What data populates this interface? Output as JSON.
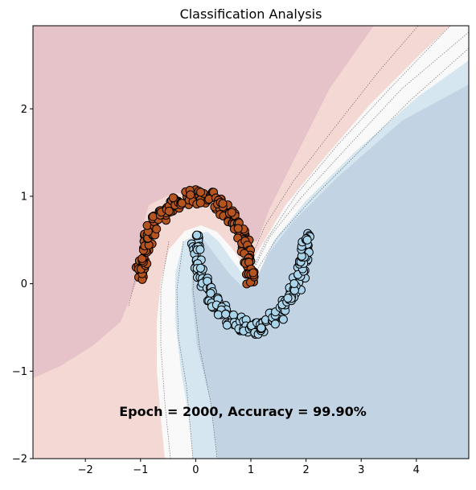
{
  "chart_data": {
    "type": "scatter",
    "title": "Classification Analysis",
    "xlabel": "",
    "ylabel": "",
    "xlim": [
      -2.95,
      4.95
    ],
    "ylim": [
      -2.0,
      2.95
    ],
    "xticks": [
      -2,
      -1,
      0,
      1,
      2,
      3,
      4
    ],
    "yticks": [
      -2,
      -1,
      0,
      1,
      2
    ],
    "grid": false,
    "legend": "none",
    "annotation": "Epoch = 2000, Accuracy = 99.90%",
    "background": "decision-boundary contour fill (red-blue diverging)",
    "colors": {
      "class_0_point": "#b5541e",
      "class_1_point": "#a9d4ea",
      "point_edge": "#000000",
      "region_red_deep": "#e6c3c9",
      "region_red_light": "#f4d8d3",
      "region_neutral": "#f9f9f9",
      "region_blue_light": "#d6e6f1",
      "region_blue_deep": "#c2d3e4"
    },
    "series": [
      {
        "class": 0,
        "shape": "upper moon (semicircle center (0,0), radius 1, angle 0 to 180 deg)",
        "points": [
          [
            -1.0,
            0.12
          ],
          [
            -0.98,
            0.2
          ],
          [
            -0.95,
            0.3
          ],
          [
            -0.92,
            0.4
          ],
          [
            -0.87,
            0.5
          ],
          [
            -0.8,
            0.6
          ],
          [
            -0.71,
            0.7
          ],
          [
            -0.6,
            0.8
          ],
          [
            -0.48,
            0.88
          ],
          [
            -0.34,
            0.94
          ],
          [
            -0.2,
            0.98
          ],
          [
            -0.05,
            1.0
          ],
          [
            0.1,
            0.99
          ],
          [
            0.25,
            0.97
          ],
          [
            0.39,
            0.92
          ],
          [
            0.52,
            0.85
          ],
          [
            0.64,
            0.77
          ],
          [
            0.74,
            0.67
          ],
          [
            0.83,
            0.56
          ],
          [
            0.9,
            0.44
          ],
          [
            0.95,
            0.31
          ],
          [
            0.98,
            0.18
          ],
          [
            1.0,
            0.05
          ]
        ]
      },
      {
        "class": 1,
        "shape": "lower moon (semicircle center (1,0.5), radius 1, angle 180 to 360 deg)",
        "points": [
          [
            0.0,
            0.5
          ],
          [
            0.01,
            0.38
          ],
          [
            0.04,
            0.25
          ],
          [
            0.09,
            0.12
          ],
          [
            0.16,
            0.0
          ],
          [
            0.25,
            -0.12
          ],
          [
            0.36,
            -0.23
          ],
          [
            0.48,
            -0.32
          ],
          [
            0.62,
            -0.4
          ],
          [
            0.76,
            -0.46
          ],
          [
            0.92,
            -0.49
          ],
          [
            1.08,
            -0.5
          ],
          [
            1.24,
            -0.47
          ],
          [
            1.38,
            -0.41
          ],
          [
            1.52,
            -0.33
          ],
          [
            1.64,
            -0.23
          ],
          [
            1.75,
            -0.12
          ],
          [
            1.84,
            0.0
          ],
          [
            1.91,
            0.12
          ],
          [
            1.96,
            0.25
          ],
          [
            1.99,
            0.38
          ],
          [
            2.0,
            0.5
          ]
        ]
      }
    ]
  }
}
